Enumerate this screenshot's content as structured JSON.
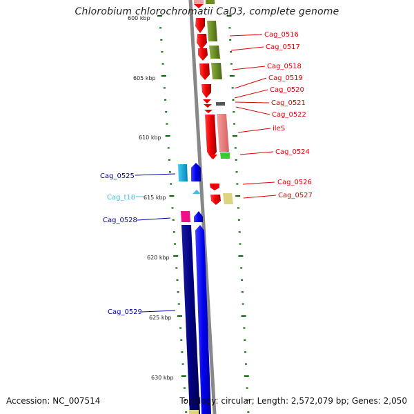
{
  "title": "Chlorobium chlorochromatii CaD3, complete genome",
  "accession": "Accession: NC_007514",
  "summary": "Topology: circular; Length: 2,572,079 bp; Genes: 2,050",
  "scale_labels": [
    "605 kbp",
    "610 kbp",
    "615 kbp",
    "620 kbp",
    "625 kbp",
    "630 kbp"
  ],
  "partial_scale_label": "600 kbp",
  "genes_right": [
    "Cag_0516",
    "Cag_0517",
    "Cag_0518",
    "Cag_0519",
    "Cag_0520",
    "Cag_0521",
    "Cag_0522",
    "ileS",
    "Cag_0524",
    "Cag_0526",
    "Cag_0527"
  ],
  "genes_left": [
    "Cag_0525",
    "Cag_t18",
    "Cag_0528",
    "Cag_0529"
  ],
  "colors": {
    "backbone": "#8a8a8a",
    "forward_strand": "#0000ee",
    "reverse_strand": "#ee0000",
    "cds_olive": "#6b8e23",
    "cds_salmon": "#f08080",
    "cds_green": "#33cc33",
    "cds_cyan": "#00aadd",
    "cds_magenta": "#ee1188",
    "cds_navy": "#000080",
    "cds_khaki": "#ddd480",
    "trna": "#44bbee",
    "tick": "#006400",
    "label_red": "#dd0000",
    "label_blue": "#0000aa",
    "label_cyan": "#44bbdd"
  }
}
